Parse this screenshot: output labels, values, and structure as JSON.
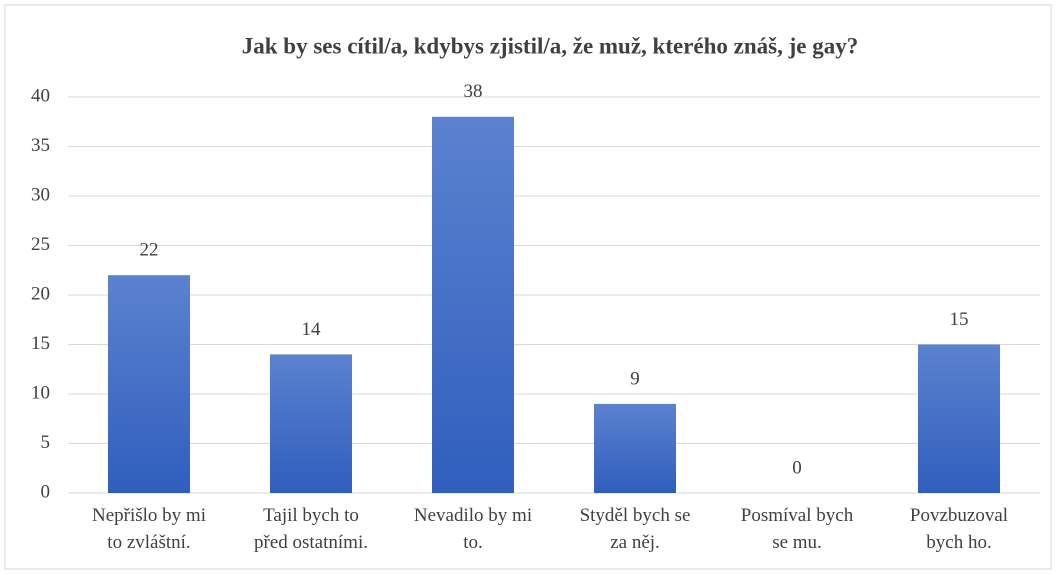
{
  "chart_data": {
    "type": "bar",
    "title": "Jak by ses cítil/a, kdybys zjistil/a, že muž, kterého znáš, je gay?",
    "categories": [
      "Nepřišlo by mi\nto zvláštní.",
      "Tajil bych to\npřed ostatními.",
      "Nevadilo by mi\nto.",
      "Styděl bych se\nza něj.",
      "Posmíval bych\nse mu.",
      "Povzbuzoval\nbych ho."
    ],
    "values": [
      22,
      14,
      38,
      9,
      0,
      15
    ],
    "color": "#4472c4",
    "ylim": [
      0,
      40
    ],
    "yticks": [
      0,
      5,
      10,
      15,
      20,
      25,
      30,
      35,
      40
    ],
    "grid": true
  }
}
